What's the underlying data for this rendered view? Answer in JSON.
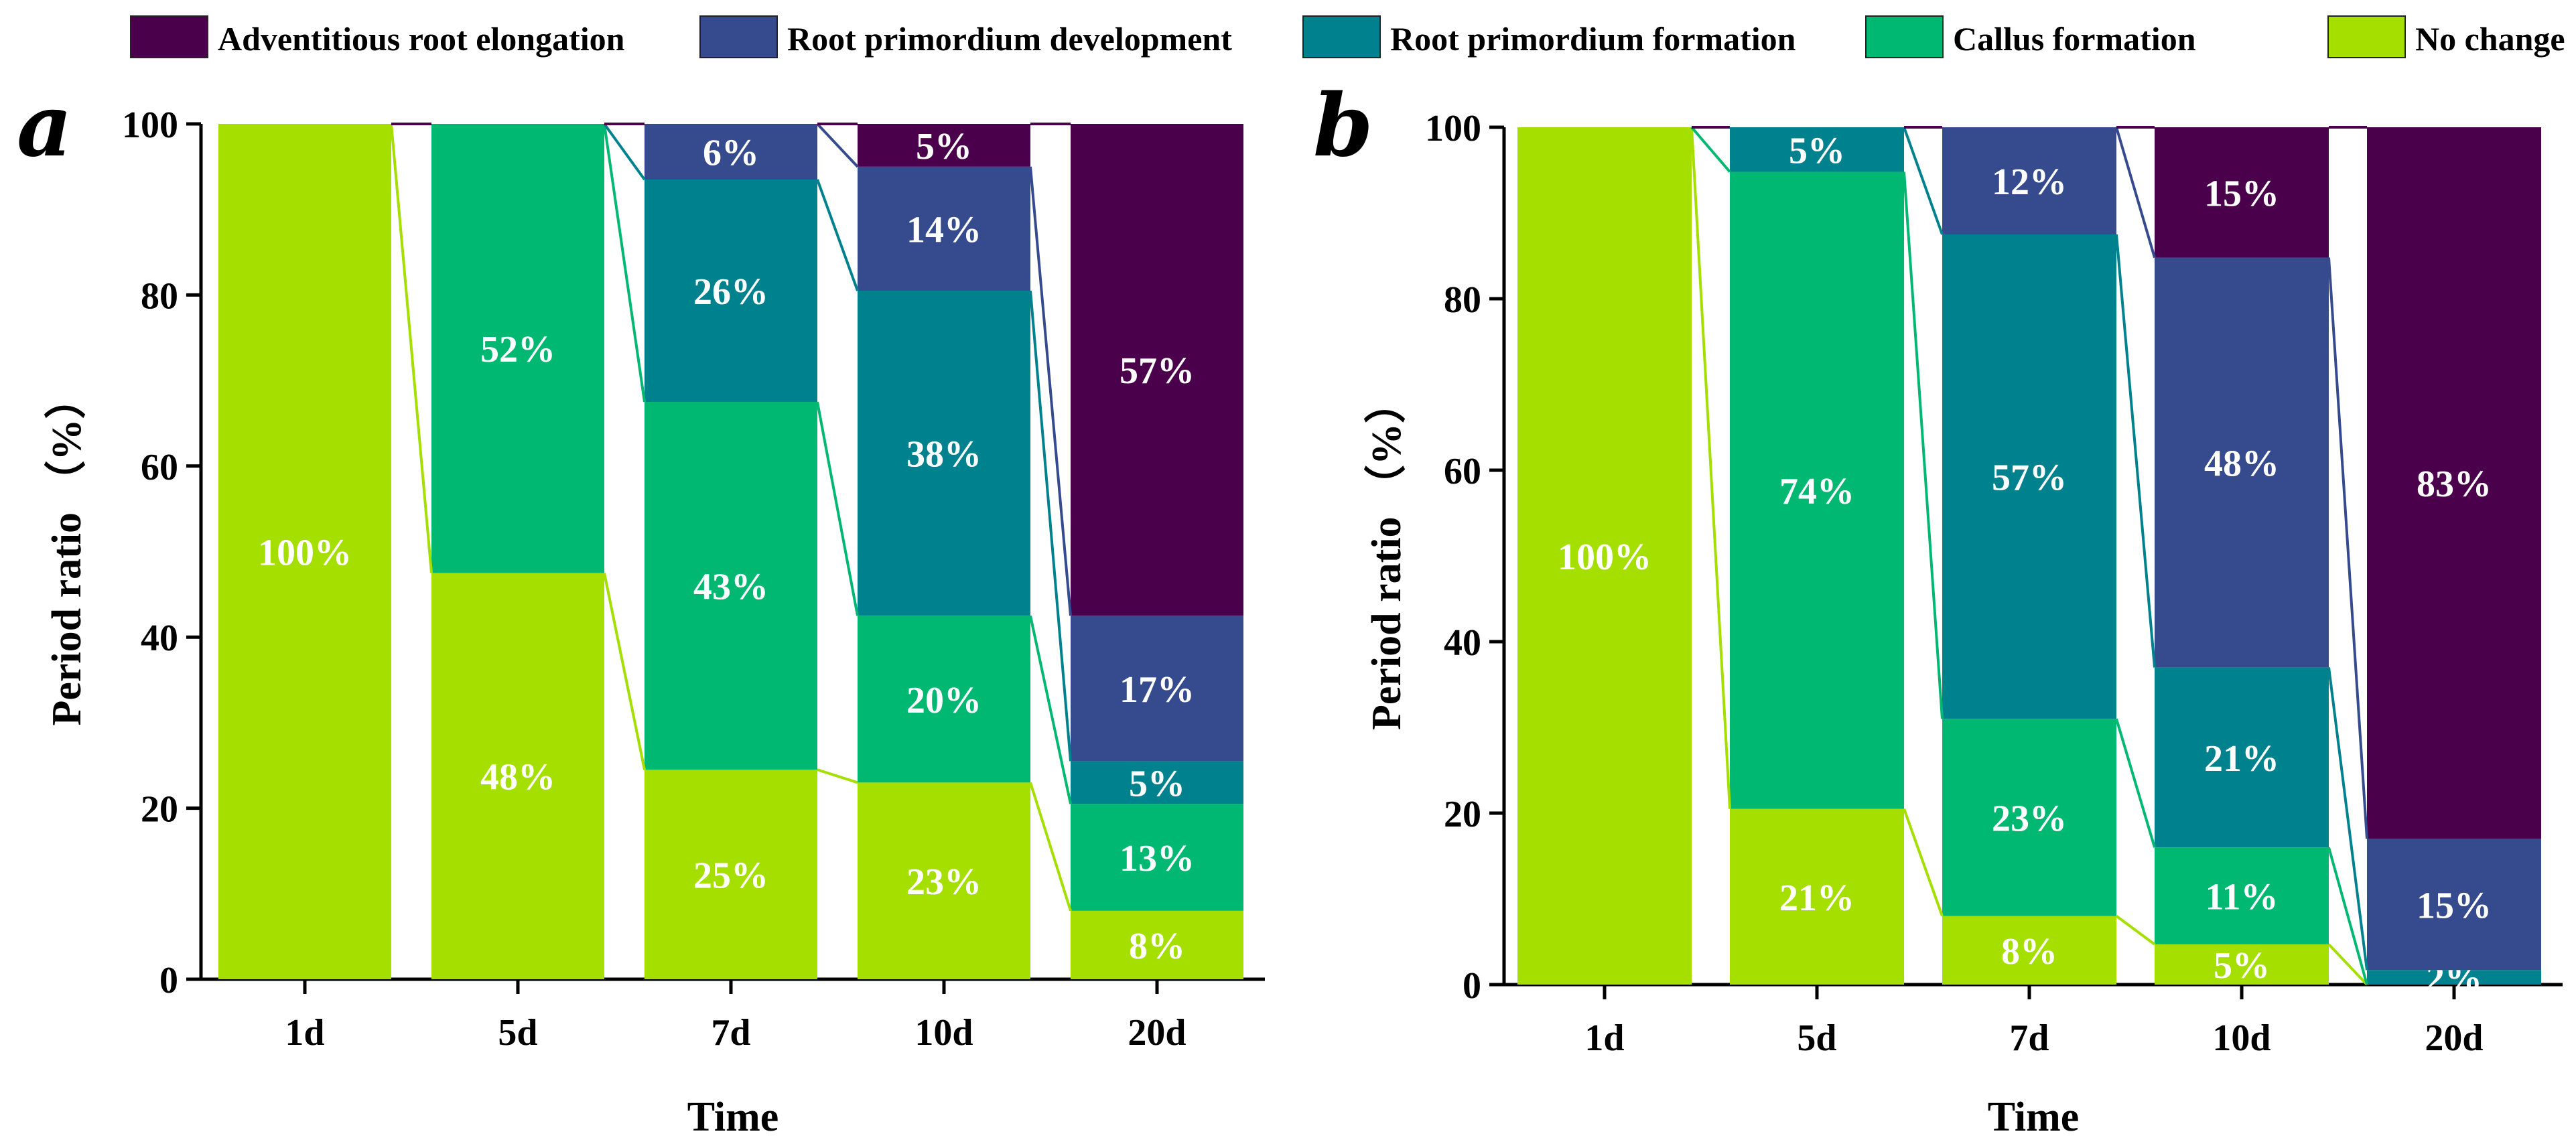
{
  "colors": {
    "Adventitious root elongation": "#4a004a",
    "Root primordium development": "#364a8e",
    "Root primordium formation": "#00818e",
    "Callus formation": "#00b871",
    "No change": "#a4df00"
  },
  "chart_data": [
    {
      "type": "bar",
      "stacked": true,
      "panel_label": "a",
      "categories": [
        "1d",
        "5d",
        "7d",
        "10d",
        "20d"
      ],
      "xlabel": "Time",
      "ylabel": "Period ratio （%）",
      "ylim": [
        0,
        100
      ],
      "yticks": [
        "0",
        "20",
        "40",
        "60",
        "80",
        "100"
      ],
      "legend": "top",
      "series": [
        {
          "name": "No change",
          "values": [
            100,
            47.5,
            24.5,
            23,
            8
          ],
          "labels": [
            "100%",
            "48%",
            "25%",
            "23%",
            "8%"
          ]
        },
        {
          "name": "Callus formation",
          "values": [
            0,
            52.5,
            43,
            19.5,
            12.5
          ],
          "labels": [
            "",
            "52%",
            "43%",
            "20%",
            "13%"
          ]
        },
        {
          "name": "Root primordium formation",
          "values": [
            0,
            0,
            26,
            38,
            5
          ],
          "labels": [
            "",
            "",
            "26%",
            "38%",
            "5%"
          ]
        },
        {
          "name": "Root primordium development",
          "values": [
            0,
            0,
            6.5,
            14.5,
            17
          ],
          "labels": [
            "",
            "",
            "6%",
            "14%",
            "17%"
          ]
        },
        {
          "name": "Adventitious root elongation",
          "values": [
            0,
            0,
            0,
            5,
            57.5
          ],
          "labels": [
            "",
            "",
            "",
            "5%",
            "57%"
          ]
        }
      ]
    },
    {
      "type": "bar",
      "stacked": true,
      "panel_label": "b",
      "categories": [
        "1d",
        "5d",
        "7d",
        "10d",
        "20d"
      ],
      "xlabel": "Time",
      "ylabel": "Period ratio （%）",
      "ylim": [
        0,
        100
      ],
      "yticks": [
        "0",
        "20",
        "40",
        "60",
        "80",
        "100"
      ],
      "legend": "top",
      "series": [
        {
          "name": "No change",
          "values": [
            100,
            20.5,
            8,
            4.7,
            0
          ],
          "labels": [
            "100%",
            "21%",
            "8%",
            "5%",
            ""
          ]
        },
        {
          "name": "Callus formation",
          "values": [
            0,
            74.3,
            23,
            11.3,
            0
          ],
          "labels": [
            "",
            "74%",
            "23%",
            "11%",
            ""
          ]
        },
        {
          "name": "Root primordium formation",
          "values": [
            0,
            5.2,
            56.5,
            21,
            1.7
          ],
          "labels": [
            "",
            "5%",
            "57%",
            "21%",
            "2%"
          ]
        },
        {
          "name": "Root primordium development",
          "values": [
            0,
            0,
            12.5,
            47.8,
            15.3
          ],
          "labels": [
            "",
            "",
            "12%",
            "48%",
            "15%"
          ]
        },
        {
          "name": "Adventitious root elongation",
          "values": [
            0,
            0,
            0,
            15.2,
            83
          ],
          "labels": [
            "",
            "",
            "",
            "15%",
            "83%"
          ]
        }
      ]
    }
  ]
}
